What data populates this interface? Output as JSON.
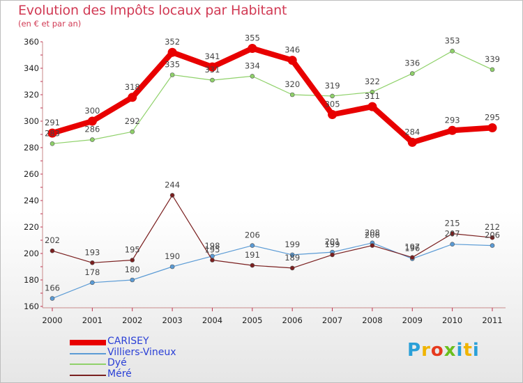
{
  "title": "Evolution des Impôts locaux par Habitant",
  "subtitle": "(en € et par an)",
  "logo": {
    "letters": [
      "P",
      "r",
      "o",
      "x",
      "i",
      "t",
      "i"
    ],
    "colors": [
      "#2aa0d8",
      "#f0b400",
      "#e63a1e",
      "#6abf1e",
      "#2aa0d8",
      "#f0b400",
      "#2aa0d8"
    ]
  },
  "chart_data": {
    "type": "line",
    "title": "Evolution des Impôts locaux par Habitant",
    "subtitle": "(en € et par an)",
    "xlabel": "",
    "ylabel": "",
    "ylim": [
      160,
      360
    ],
    "yticks": [
      160,
      180,
      200,
      220,
      240,
      260,
      280,
      300,
      320,
      340,
      360
    ],
    "grid": false,
    "legend": "bottom-left",
    "categories": [
      "2000",
      "2001",
      "2002",
      "2003",
      "2004",
      "2005",
      "2006",
      "2007",
      "2008",
      "2009",
      "2010",
      "2011"
    ],
    "series": [
      {
        "name": "CARISEY",
        "color": "#e80000",
        "width": 8,
        "values": [
          291,
          300,
          318,
          352,
          341,
          355,
          346,
          305,
          311,
          284,
          293,
          295
        ]
      },
      {
        "name": "Villiers-Vineux",
        "color": "#5b9bd5",
        "width": 1.2,
        "values": [
          166,
          178,
          180,
          190,
          198,
          206,
          199,
          201,
          208,
          196,
          207,
          206
        ]
      },
      {
        "name": "Dyé",
        "color": "#8fd16a",
        "width": 1.2,
        "values": [
          283,
          286,
          292,
          335,
          331,
          334,
          320,
          319,
          322,
          336,
          353,
          339
        ]
      },
      {
        "name": "Méré",
        "color": "#7a1f1f",
        "width": 1.2,
        "values": [
          202,
          193,
          195,
          244,
          195,
          191,
          189,
          199,
          206,
          197,
          215,
          212
        ]
      }
    ]
  }
}
